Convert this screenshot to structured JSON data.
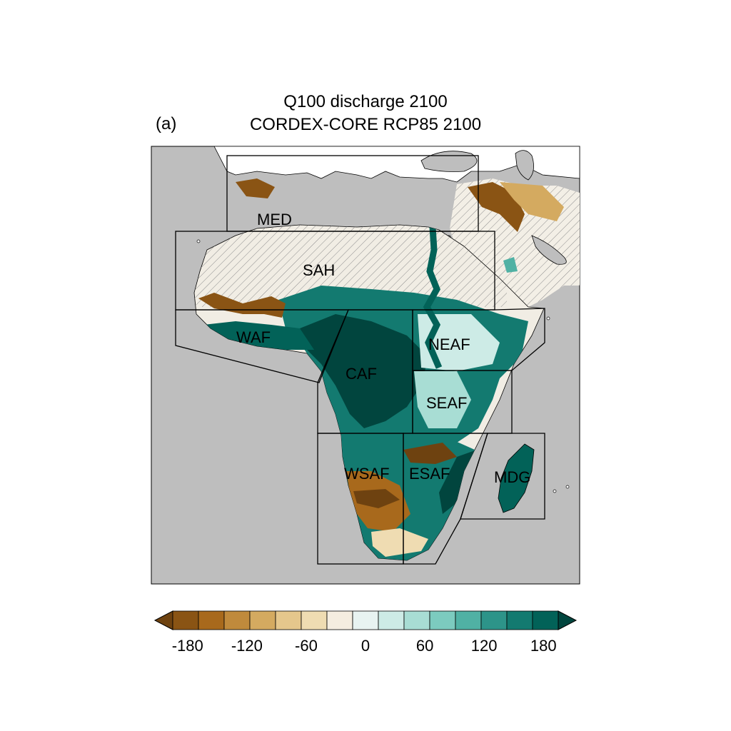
{
  "title": {
    "line1": "Q100 discharge 2100",
    "line2": "CORDEX-CORE RCP85 2100",
    "panel_label": "(a)"
  },
  "map": {
    "background_color": "#bebebe",
    "land_color": "#ffffff",
    "regions": [
      "MED",
      "SAH",
      "WAF",
      "CAF",
      "NEAF",
      "SEAF",
      "WSAF",
      "ESAF",
      "MDG"
    ]
  },
  "colorbar": {
    "colors": [
      "#6e4210",
      "#8a5414",
      "#a8691c",
      "#c08a3c",
      "#d4aa60",
      "#e5c78c",
      "#efdcb2",
      "#f5ede0",
      "#e8f3f1",
      "#cdebe6",
      "#a8ddd4",
      "#7ccbbf",
      "#50b1a4",
      "#2d9489",
      "#137a70",
      "#026258",
      "#01453e"
    ],
    "ticks": [
      "-180",
      "-120",
      "-60",
      "0",
      "60",
      "120",
      "180"
    ],
    "tick_values": [
      -180,
      -120,
      -60,
      0,
      60,
      120,
      180
    ],
    "min": -210,
    "max": 210
  }
}
